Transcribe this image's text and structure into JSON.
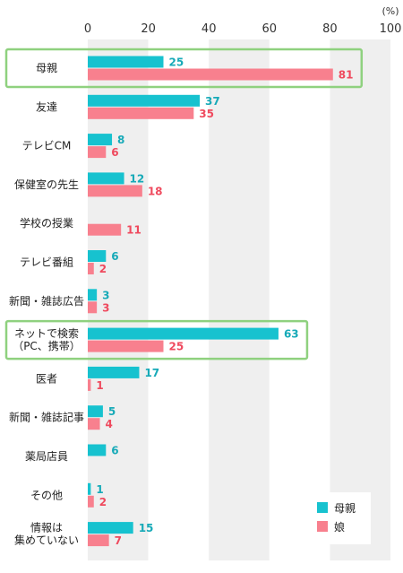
{
  "chart_data": {
    "type": "bar",
    "orientation": "horizontal",
    "unit": "(%)",
    "xlim": [
      0,
      100
    ],
    "xticks": [
      0,
      20,
      40,
      60,
      80,
      100
    ],
    "categories": [
      [
        "母親"
      ],
      [
        "友達"
      ],
      [
        "テレビCM"
      ],
      [
        "保健室の先生"
      ],
      [
        "学校の授業"
      ],
      [
        "テレビ番組"
      ],
      [
        "新聞・雑誌広告"
      ],
      [
        "ネットで検索",
        "（PC、携帯）"
      ],
      [
        "医者"
      ],
      [
        "新聞・雑誌記事"
      ],
      [
        "薬局店員"
      ],
      [
        "その他"
      ],
      [
        "情報は",
        "集めていない"
      ]
    ],
    "series": [
      {
        "name": "母親",
        "color": "#17c2cf",
        "label_color": "#17aab8",
        "values": [
          25,
          37,
          8,
          12,
          null,
          6,
          3,
          63,
          17,
          5,
          6,
          1,
          15
        ]
      },
      {
        "name": "娘",
        "color": "#f8808e",
        "label_color": "#ef4a5e",
        "values": [
          81,
          35,
          6,
          18,
          11,
          2,
          3,
          25,
          1,
          4,
          null,
          2,
          7
        ]
      }
    ],
    "highlighted": [
      "母親",
      "ネットで検索"
    ],
    "highlight_color": "#8fd17f",
    "legend_position": "bottom-right",
    "grid": "alternating column bands"
  }
}
